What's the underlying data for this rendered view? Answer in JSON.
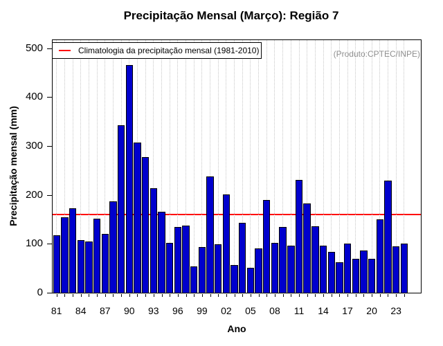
{
  "title": "Precipitação Mensal (Março): Região 7",
  "watermark": "(Produto:CPTEC/INPE)",
  "legend": {
    "label": "Climatologia da precipitação mensal (1981-2010)",
    "position": "top-left-inside"
  },
  "colors": {
    "bar": "#0000cd",
    "bar_border": "#000000",
    "climatology_line": "#ff0000",
    "watermark_text": "#8f8f8f",
    "grid": "#c6c6c6",
    "axis": "#000000"
  },
  "chart_data": {
    "type": "bar",
    "title": "Precipitação Mensal (Março): Região 7",
    "xlabel": "Ano",
    "ylabel": "Precipitação mensal (mm)",
    "ylim": [
      0,
      500
    ],
    "y_ticks": [
      0,
      100,
      200,
      300,
      400,
      500
    ],
    "grid": "vertical-dotted-per-year",
    "legend_position": "top-left-inside",
    "categories": [
      1981,
      1982,
      1983,
      1984,
      1985,
      1986,
      1987,
      1988,
      1989,
      1990,
      1991,
      1992,
      1993,
      1994,
      1995,
      1996,
      1997,
      1998,
      1999,
      2000,
      2001,
      2002,
      2003,
      2004,
      2005,
      2006,
      2007,
      2008,
      2009,
      2010,
      2011,
      2012,
      2013,
      2014,
      2015,
      2016,
      2017,
      2018,
      2019,
      2020,
      2021,
      2022,
      2023,
      2024
    ],
    "values": [
      117,
      154,
      172,
      107,
      105,
      152,
      121,
      187,
      342,
      465,
      307,
      278,
      214,
      166,
      102,
      135,
      137,
      54,
      93,
      238,
      99,
      201,
      56,
      143,
      51,
      90,
      189,
      102,
      135,
      96,
      231,
      182,
      136,
      96,
      84,
      62,
      101,
      69,
      87,
      70,
      150,
      229,
      95,
      101
    ],
    "climatology_value": 160,
    "x_tick_label_years": [
      1981,
      1984,
      1987,
      1990,
      1993,
      1996,
      1999,
      2002,
      2005,
      2008,
      2011,
      2014,
      2017,
      2020,
      2023
    ],
    "x_tick_labels": [
      "81",
      "84",
      "87",
      "90",
      "93",
      "96",
      "99",
      "02",
      "05",
      "08",
      "11",
      "14",
      "17",
      "20",
      "23"
    ]
  }
}
